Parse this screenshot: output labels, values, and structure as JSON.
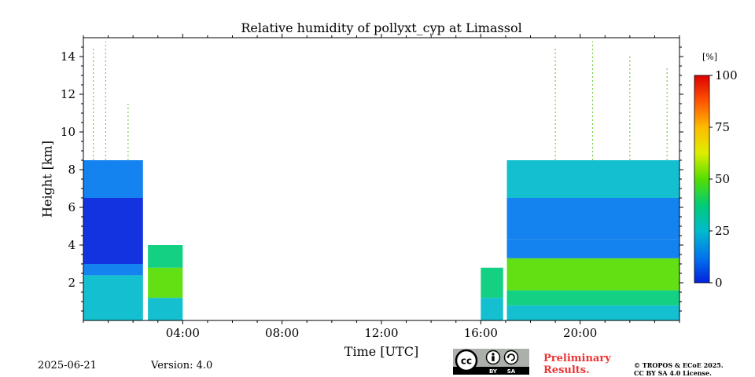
{
  "chart_data": {
    "type": "heatmap",
    "title": "Relative humidity of pollyxt_cyp at Limassol",
    "xlabel": "Time [UTC]",
    "ylabel": "Height [km]",
    "xlim_hours": [
      0,
      24
    ],
    "ylim_km": [
      0,
      15
    ],
    "x_tick_hours": [
      4,
      8,
      12,
      16,
      20
    ],
    "x_tick_labels": [
      "04:00",
      "08:00",
      "12:00",
      "16:00",
      "20:00"
    ],
    "y_ticks": [
      2,
      4,
      6,
      8,
      10,
      12,
      14
    ],
    "y_tick_labels": [
      "2",
      "4",
      "6",
      "8",
      "10",
      "12",
      "14"
    ],
    "colorbar": {
      "label": "[%]",
      "min": 0,
      "max": 100,
      "ticks": [
        0,
        25,
        50,
        75,
        100
      ],
      "tick_labels": [
        "0",
        "25",
        "50",
        "75",
        "100"
      ],
      "colormap": [
        "#0022dd",
        "#0077ee",
        "#00bbcc",
        "#00cc77",
        "#55dd00",
        "#ddee00",
        "#ffbb00",
        "#ff5500",
        "#dd0000"
      ]
    },
    "rh_profiles": [
      {
        "start_hour": 0.0,
        "end_hour": 2.4,
        "layers": [
          {
            "bottom_km": 0.0,
            "top_km": 1.0,
            "rh": 28
          },
          {
            "bottom_km": 1.0,
            "top_km": 2.4,
            "rh": 20
          },
          {
            "bottom_km": 2.4,
            "top_km": 3.0,
            "rh": 16
          },
          {
            "bottom_km": 3.0,
            "top_km": 6.5,
            "rh": 6
          },
          {
            "bottom_km": 6.5,
            "top_km": 8.5,
            "rh": 14
          }
        ]
      },
      {
        "start_hour": 2.6,
        "end_hour": 4.0,
        "layers": [
          {
            "bottom_km": 0.0,
            "top_km": 1.2,
            "rh": 28
          },
          {
            "bottom_km": 1.2,
            "top_km": 2.8,
            "rh": 45
          },
          {
            "bottom_km": 2.8,
            "top_km": 4.0,
            "rh": 35
          }
        ]
      },
      {
        "start_hour": 16.0,
        "end_hour": 16.9,
        "layers": [
          {
            "bottom_km": 0.0,
            "top_km": 1.2,
            "rh": 25
          },
          {
            "bottom_km": 1.2,
            "top_km": 2.8,
            "rh": 40
          }
        ]
      },
      {
        "start_hour": 17.05,
        "end_hour": 24.0,
        "layers": [
          {
            "bottom_km": 0.0,
            "top_km": 0.8,
            "rh": 30
          },
          {
            "bottom_km": 0.8,
            "top_km": 1.6,
            "rh": 35
          },
          {
            "bottom_km": 1.6,
            "top_km": 3.3,
            "rh": 50
          },
          {
            "bottom_km": 3.3,
            "top_km": 4.3,
            "rh": 12
          },
          {
            "bottom_km": 4.3,
            "top_km": 6.5,
            "rh": 8
          },
          {
            "bottom_km": 6.5,
            "top_km": 8.5,
            "rh": 22
          }
        ]
      }
    ],
    "cloud_signal": [
      {
        "hour": 0.4,
        "top_km": 14.5
      },
      {
        "hour": 0.9,
        "top_km": 14.8
      },
      {
        "hour": 1.8,
        "top_km": 11.5
      },
      {
        "hour": 19.0,
        "top_km": 14.5
      },
      {
        "hour": 20.5,
        "top_km": 14.8
      },
      {
        "hour": 22.0,
        "top_km": 14.0
      },
      {
        "hour": 23.5,
        "top_km": 13.5
      }
    ]
  },
  "footer": {
    "date": "2025-06-21",
    "version": "Version: 4.0",
    "license_badge": {
      "cc": "cc",
      "by": "BY",
      "sa": "SA"
    },
    "preliminary_line1": "Preliminary",
    "preliminary_line2": "Results.",
    "copyright_line1": "© TROPOS & ECoE 2025.",
    "copyright_line2": "CC BY SA 4.0 License."
  }
}
